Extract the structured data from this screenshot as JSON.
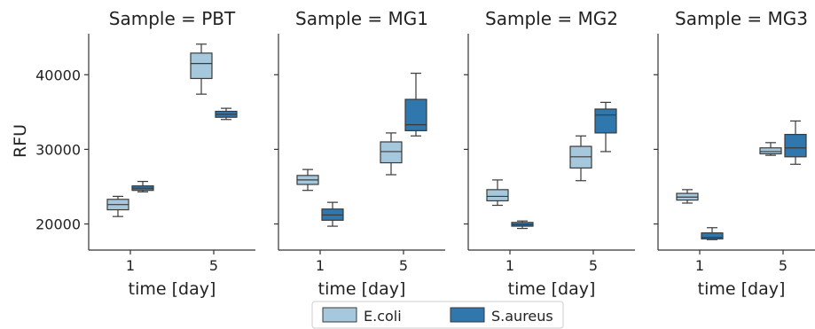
{
  "chart_data": {
    "type": "box",
    "ylabel": "RFU",
    "xlabel": "time [day]",
    "ylim": [
      16500,
      45500
    ],
    "yticks": [
      20000,
      30000,
      40000
    ],
    "ytick_labels": [
      "20000",
      "30000",
      "40000"
    ],
    "categories": [
      "1",
      "5"
    ],
    "grid": false,
    "legend": {
      "placement": "bottom-center",
      "entries": [
        {
          "name": "E.coli",
          "color": "#a6c8dd"
        },
        {
          "name": "S.aureus",
          "color": "#2f77ad"
        }
      ]
    },
    "panels": [
      {
        "title": "Sample = PBT",
        "series": [
          {
            "name": "E.coli",
            "boxes": [
              {
                "x": "1",
                "min": 21000,
                "q1": 21900,
                "median": 22600,
                "q3": 23300,
                "max": 23700
              },
              {
                "x": "5",
                "min": 37400,
                "q1": 39500,
                "median": 41500,
                "q3": 42900,
                "max": 44100
              }
            ]
          },
          {
            "name": "S.aureus",
            "boxes": [
              {
                "x": "1",
                "min": 24300,
                "q1": 24500,
                "median": 24800,
                "q3": 25100,
                "max": 25700
              },
              {
                "x": "5",
                "min": 34000,
                "q1": 34300,
                "median": 34700,
                "q3": 35100,
                "max": 35500
              }
            ]
          }
        ]
      },
      {
        "title": "Sample = MG1",
        "series": [
          {
            "name": "E.coli",
            "boxes": [
              {
                "x": "1",
                "min": 24500,
                "q1": 25300,
                "median": 25900,
                "q3": 26500,
                "max": 27300
              },
              {
                "x": "5",
                "min": 26600,
                "q1": 28200,
                "median": 29700,
                "q3": 31000,
                "max": 32200
              }
            ]
          },
          {
            "name": "S.aureus",
            "boxes": [
              {
                "x": "1",
                "min": 19700,
                "q1": 20500,
                "median": 21200,
                "q3": 22000,
                "max": 22900
              },
              {
                "x": "5",
                "min": 31800,
                "q1": 32500,
                "median": 33300,
                "q3": 36700,
                "max": 40200
              }
            ]
          }
        ]
      },
      {
        "title": "Sample = MG2",
        "series": [
          {
            "name": "E.coli",
            "boxes": [
              {
                "x": "1",
                "min": 22500,
                "q1": 23100,
                "median": 23700,
                "q3": 24600,
                "max": 25900
              },
              {
                "x": "5",
                "min": 25800,
                "q1": 27500,
                "median": 29000,
                "q3": 30400,
                "max": 31800
              }
            ]
          },
          {
            "name": "S.aureus",
            "boxes": [
              {
                "x": "1",
                "min": 19400,
                "q1": 19700,
                "median": 19900,
                "q3": 20200,
                "max": 20400
              },
              {
                "x": "5",
                "min": 29700,
                "q1": 32200,
                "median": 34600,
                "q3": 35400,
                "max": 36300
              }
            ]
          }
        ]
      },
      {
        "title": "Sample = MG3",
        "series": [
          {
            "name": "E.coli",
            "boxes": [
              {
                "x": "1",
                "min": 22800,
                "q1": 23200,
                "median": 23600,
                "q3": 24100,
                "max": 24600
              },
              {
                "x": "5",
                "min": 29200,
                "q1": 29400,
                "median": 29700,
                "q3": 30200,
                "max": 30900
              }
            ]
          },
          {
            "name": "S.aureus",
            "boxes": [
              {
                "x": "1",
                "min": 17900,
                "q1": 18000,
                "median": 18200,
                "q3": 18800,
                "max": 19500
              },
              {
                "x": "5",
                "min": 28000,
                "q1": 29000,
                "median": 30200,
                "q3": 32000,
                "max": 33800
              }
            ]
          }
        ]
      }
    ]
  }
}
